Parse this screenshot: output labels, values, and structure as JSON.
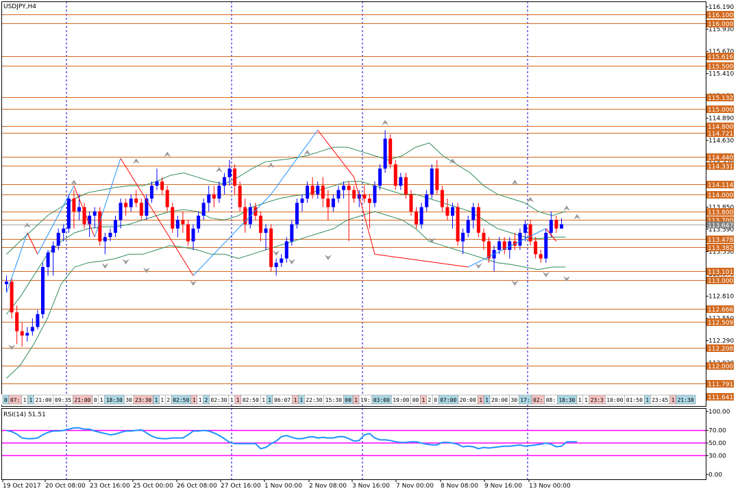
{
  "chart_data": [
    {
      "type": "candlestick",
      "title": "USDJPY,H4",
      "ylim": [
        111.55,
        116.19
      ],
      "y_ticks": [
        "116.190",
        "115.930",
        "115.670",
        "115.410",
        "115.150",
        "114.890",
        "114.630",
        "114.370",
        "114.110",
        "113.850",
        "113.590",
        "113.330",
        "113.070",
        "112.810",
        "112.550",
        "112.290",
        "112.030",
        "111.770"
      ],
      "current_price": "113.647",
      "x_labels": [
        "19 Oct 2017",
        "20 Oct 08:00",
        "23 Oct 16:00",
        "25 Oct 00:00",
        "26 Oct 08:00",
        "27 Oct 16:00",
        "1 Nov 00:00",
        "2 Nov 08:00",
        "3 Nov 16:00",
        "7 Nov 00:00",
        "8 Nov 08:00",
        "9 Nov 16:00",
        "13 Nov 00:00"
      ],
      "levels": [
        "116.100",
        "116.000",
        "115.616",
        "115.500",
        "115.132",
        "115.000",
        "114.800",
        "114.721",
        "114.440",
        "114.331",
        "114.114",
        "114.000",
        "113.800",
        "113.700",
        "113.478",
        "113.382",
        "113.101",
        "113.000",
        "112.666",
        "112.509",
        "112.208",
        "112.000",
        "111.791",
        "111.641"
      ],
      "bull_color": "#0000ff",
      "bear_color": "#ff0000",
      "level_color": "#d2691e",
      "band_color": "#2e8b57",
      "zigzag_up_color": "#1e90ff",
      "zigzag_down_color": "#ff0000",
      "candles": [
        [
          112.95,
          113.05,
          112.85,
          112.98
        ],
        [
          112.98,
          113.02,
          112.55,
          112.62
        ],
        [
          112.62,
          112.7,
          112.25,
          112.4
        ],
        [
          112.4,
          112.5,
          112.22,
          112.35
        ],
        [
          112.35,
          112.45,
          112.28,
          112.38
        ],
        [
          112.4,
          112.55,
          112.35,
          112.45
        ],
        [
          112.45,
          112.65,
          112.42,
          112.6
        ],
        [
          112.6,
          113.2,
          112.55,
          113.15
        ],
        [
          113.15,
          113.35,
          113.05,
          113.32
        ],
        [
          113.32,
          113.45,
          113.05,
          113.4
        ],
        [
          113.4,
          113.6,
          113.35,
          113.55
        ],
        [
          113.55,
          113.65,
          113.45,
          113.6
        ],
        [
          113.6,
          114.0,
          113.55,
          113.95
        ],
        [
          113.95,
          114.05,
          113.6,
          113.8
        ],
        [
          113.8,
          114.0,
          113.7,
          113.85
        ],
        [
          113.85,
          113.9,
          113.6,
          113.65
        ],
        [
          113.65,
          113.8,
          113.5,
          113.75
        ],
        [
          113.75,
          113.85,
          113.6,
          113.8
        ],
        [
          113.8,
          113.85,
          113.4,
          113.45
        ],
        [
          113.45,
          113.55,
          113.3,
          113.5
        ],
        [
          113.5,
          113.6,
          113.45,
          113.55
        ],
        [
          113.55,
          113.75,
          113.5,
          113.7
        ],
        [
          113.7,
          113.95,
          113.6,
          113.9
        ],
        [
          113.9,
          113.95,
          113.75,
          113.85
        ],
        [
          113.85,
          114.0,
          113.8,
          113.95
        ],
        [
          113.95,
          114.05,
          113.85,
          113.9
        ],
        [
          113.9,
          113.95,
          113.7,
          113.75
        ],
        [
          113.75,
          114.0,
          113.7,
          113.95
        ],
        [
          113.95,
          114.15,
          113.9,
          114.1
        ],
        [
          114.1,
          114.3,
          114.05,
          114.15
        ],
        [
          114.15,
          114.2,
          114.0,
          114.05
        ],
        [
          114.05,
          114.1,
          113.8,
          113.85
        ],
        [
          113.85,
          113.9,
          113.55,
          113.6
        ],
        [
          113.6,
          113.75,
          113.5,
          113.7
        ],
        [
          113.7,
          113.8,
          113.55,
          113.65
        ],
        [
          113.65,
          113.7,
          113.4,
          113.45
        ],
        [
          113.45,
          113.65,
          113.35,
          113.6
        ],
        [
          113.6,
          113.8,
          113.55,
          113.75
        ],
        [
          113.75,
          113.95,
          113.7,
          113.9
        ],
        [
          113.9,
          114.1,
          113.8,
          114.0
        ],
        [
          114.0,
          114.1,
          113.85,
          113.95
        ],
        [
          113.95,
          114.15,
          113.9,
          114.1
        ],
        [
          114.1,
          114.25,
          114.0,
          114.2
        ],
        [
          114.2,
          114.4,
          114.1,
          114.3
        ],
        [
          114.3,
          114.35,
          114.0,
          114.1
        ],
        [
          114.1,
          114.15,
          113.8,
          113.85
        ],
        [
          113.85,
          113.95,
          113.55,
          113.65
        ],
        [
          113.65,
          113.9,
          113.6,
          113.85
        ],
        [
          113.85,
          113.9,
          113.7,
          113.75
        ],
        [
          113.75,
          113.8,
          113.45,
          113.55
        ],
        [
          113.55,
          113.65,
          113.35,
          113.6
        ],
        [
          113.6,
          113.65,
          113.1,
          113.15
        ],
        [
          113.15,
          113.25,
          113.05,
          113.2
        ],
        [
          113.2,
          113.3,
          113.15,
          113.25
        ],
        [
          113.25,
          113.5,
          113.2,
          113.45
        ],
        [
          113.45,
          113.7,
          113.4,
          113.65
        ],
        [
          113.65,
          113.95,
          113.6,
          113.9
        ],
        [
          113.9,
          114.0,
          113.8,
          113.95
        ],
        [
          113.95,
          114.15,
          113.9,
          114.1
        ],
        [
          114.1,
          114.2,
          113.95,
          114.0
        ],
        [
          114.0,
          114.15,
          113.95,
          114.1
        ],
        [
          114.1,
          114.2,
          113.85,
          113.95
        ],
        [
          113.95,
          114.05,
          113.7,
          113.85
        ],
        [
          113.85,
          114.0,
          113.8,
          113.95
        ],
        [
          113.95,
          114.1,
          113.9,
          114.05
        ],
        [
          114.05,
          114.15,
          113.95,
          114.1
        ],
        [
          114.1,
          114.15,
          113.45,
          114.05
        ],
        [
          114.05,
          114.1,
          113.9,
          113.95
        ],
        [
          113.95,
          114.05,
          113.85,
          114.0
        ],
        [
          114.0,
          114.1,
          113.9,
          113.95
        ],
        [
          113.95,
          114.0,
          113.6,
          113.9
        ],
        [
          113.9,
          114.15,
          113.85,
          114.1
        ],
        [
          114.1,
          114.35,
          114.05,
          114.3
        ],
        [
          114.3,
          114.75,
          114.25,
          114.65
        ],
        [
          114.65,
          114.7,
          114.3,
          114.35
        ],
        [
          114.35,
          114.4,
          114.05,
          114.1
        ],
        [
          114.1,
          114.25,
          114.05,
          114.2
        ],
        [
          114.2,
          114.25,
          113.95,
          114.0
        ],
        [
          114.0,
          114.05,
          113.75,
          113.8
        ],
        [
          113.8,
          113.85,
          113.6,
          113.65
        ],
        [
          113.65,
          113.9,
          113.6,
          113.85
        ],
        [
          113.85,
          114.05,
          113.8,
          114.0
        ],
        [
          114.0,
          114.35,
          113.95,
          114.3
        ],
        [
          114.3,
          114.4,
          114.0,
          114.05
        ],
        [
          114.05,
          114.1,
          113.8,
          113.85
        ],
        [
          113.85,
          113.95,
          113.7,
          113.75
        ],
        [
          113.75,
          113.9,
          113.6,
          113.85
        ],
        [
          113.85,
          113.9,
          113.4,
          113.45
        ],
        [
          113.45,
          113.6,
          113.3,
          113.55
        ],
        [
          113.55,
          113.75,
          113.5,
          113.7
        ],
        [
          113.7,
          113.9,
          113.6,
          113.85
        ],
        [
          113.85,
          113.9,
          113.5,
          113.55
        ],
        [
          113.55,
          113.6,
          113.35,
          113.45
        ],
        [
          113.45,
          113.5,
          113.2,
          113.25
        ],
        [
          113.25,
          113.4,
          113.1,
          113.35
        ],
        [
          113.35,
          113.5,
          113.3,
          113.45
        ],
        [
          113.45,
          113.5,
          113.3,
          113.35
        ],
        [
          113.35,
          113.5,
          113.25,
          113.45
        ],
        [
          113.45,
          113.55,
          113.35,
          113.4
        ],
        [
          113.4,
          113.6,
          113.35,
          113.55
        ],
        [
          113.55,
          113.7,
          113.45,
          113.65
        ],
        [
          113.65,
          113.7,
          113.4,
          113.45
        ],
        [
          113.45,
          113.5,
          113.25,
          113.3
        ],
        [
          113.3,
          113.35,
          113.2,
          113.25
        ],
        [
          113.25,
          113.6,
          113.2,
          113.55
        ],
        [
          113.55,
          113.8,
          113.5,
          113.7
        ],
        [
          113.7,
          113.75,
          113.55,
          113.6
        ],
        [
          113.6,
          113.72,
          113.6,
          113.65
        ]
      ],
      "upper_band": [
        113.3,
        113.45,
        113.6,
        113.75,
        113.85,
        113.95,
        114.02,
        114.05,
        114.08,
        114.1,
        114.1,
        114.15,
        114.22,
        114.25,
        114.2,
        114.15,
        114.12,
        114.2,
        114.3,
        114.38,
        114.4,
        114.42,
        114.45,
        114.5,
        114.55,
        114.55,
        114.5,
        114.45,
        114.4,
        114.45,
        114.55,
        114.6,
        114.45,
        114.35,
        114.25,
        114.1,
        114.0,
        113.95,
        113.9,
        113.8,
        113.75,
        113.8
      ],
      "mid_band": [
        112.6,
        112.8,
        113.05,
        113.3,
        113.45,
        113.55,
        113.6,
        113.62,
        113.62,
        113.65,
        113.7,
        113.75,
        113.8,
        113.82,
        113.8,
        113.72,
        113.7,
        113.75,
        113.85,
        113.9,
        113.95,
        113.98,
        114.0,
        114.05,
        114.1,
        114.15,
        114.15,
        114.1,
        114.05,
        114.0,
        114.0,
        113.95,
        113.9,
        113.85,
        113.8,
        113.7,
        113.6,
        113.55,
        113.5,
        113.48,
        113.5,
        113.5
      ],
      "lower_band": [
        111.85,
        112.0,
        112.25,
        112.55,
        112.95,
        113.15,
        113.2,
        113.22,
        113.25,
        113.3,
        113.3,
        113.35,
        113.4,
        113.38,
        113.35,
        113.3,
        113.3,
        113.25,
        113.3,
        113.35,
        113.4,
        113.45,
        113.5,
        113.55,
        113.6,
        113.7,
        113.75,
        113.8,
        113.75,
        113.7,
        113.6,
        113.45,
        113.4,
        113.35,
        113.3,
        113.25,
        113.2,
        113.18,
        113.15,
        113.12,
        113.15,
        113.15
      ],
      "zigzag": [
        [
          0,
          112.85
        ],
        [
          4,
          113.55
        ],
        [
          6,
          113.3
        ],
        [
          13,
          114.1
        ],
        [
          17,
          113.5
        ],
        [
          22,
          114.42
        ],
        [
          36,
          113.05
        ],
        [
          51,
          114.0
        ],
        [
          60,
          114.75
        ],
        [
          67,
          114.2
        ],
        [
          71,
          113.3
        ],
        [
          89,
          113.15
        ],
        [
          104,
          113.6
        ],
        [
          106,
          113.45
        ]
      ],
      "fractals_up": [
        [
          4,
          113.55
        ],
        [
          13,
          114.05
        ],
        [
          25,
          114.3
        ],
        [
          31,
          114.38
        ],
        [
          41,
          114.2
        ],
        [
          51,
          114.25
        ],
        [
          58,
          114.4
        ],
        [
          73,
          114.75
        ],
        [
          86,
          114.3
        ],
        [
          98,
          114.05
        ],
        [
          101,
          113.85
        ],
        [
          108,
          113.75
        ],
        [
          110,
          113.65
        ]
      ],
      "fractals_down": [
        [
          1,
          112.3
        ],
        [
          19,
          113.25
        ],
        [
          23,
          113.3
        ],
        [
          27,
          113.2
        ],
        [
          36,
          113.05
        ],
        [
          52,
          113.4
        ],
        [
          55,
          113.3
        ],
        [
          62,
          113.35
        ],
        [
          82,
          113.55
        ],
        [
          91,
          113.25
        ],
        [
          98,
          113.05
        ],
        [
          104,
          113.15
        ],
        [
          108,
          113.1
        ]
      ],
      "info_strip": [
        "0",
        "07:",
        "1",
        "1",
        "21:00",
        "09:35",
        "21:00",
        "0",
        "1",
        "18:30",
        "30",
        "23:30",
        "1",
        "1",
        "2",
        "02:50",
        "1",
        "1",
        "2",
        "02:30",
        "1",
        "1",
        "02:50",
        "1",
        "1",
        "06:07",
        "1",
        "1",
        "22:30",
        "15:30",
        "00",
        "1",
        "19:",
        "03:00",
        "19:00",
        "00",
        "1",
        "2",
        "0",
        "07:00",
        "20:00",
        "1",
        "1",
        "20:00",
        "30",
        "17:",
        "02:",
        "08:",
        "18:30",
        "1",
        "1",
        "23:3",
        "10:00",
        "01:50",
        "1",
        "23:45",
        "1",
        "21:30"
      ]
    },
    {
      "type": "line",
      "title": "RSI(14) 51.51",
      "ylim": [
        0,
        100
      ],
      "y_ticks": [
        "100.00",
        "70.00",
        "50.00",
        "30.00",
        "0.00"
      ],
      "levels": [
        70,
        50,
        30
      ],
      "level_color": "#ff00ff",
      "line_color": "#1e90ff",
      "values": [
        70,
        68,
        64,
        58,
        57,
        57,
        58,
        63,
        67,
        69,
        69,
        70,
        72,
        74,
        74,
        72,
        72,
        69,
        67,
        65,
        63,
        64,
        67,
        69,
        69,
        70,
        71,
        66,
        61,
        58,
        57,
        57,
        58,
        58,
        58,
        63,
        69,
        69,
        70,
        69,
        66,
        62,
        57,
        51,
        49,
        49,
        49,
        49,
        49,
        41,
        43,
        49,
        53,
        60,
        62,
        59,
        57,
        57,
        59,
        60,
        58,
        59,
        58,
        58,
        60,
        60,
        57,
        53,
        54,
        63,
        65,
        58,
        55,
        55,
        54,
        52,
        51,
        51,
        52,
        52,
        50,
        48,
        47,
        47,
        51,
        51,
        50,
        48,
        44,
        45,
        44,
        41,
        43,
        42,
        43,
        44,
        45,
        45,
        46,
        47,
        45,
        46,
        47,
        48,
        50,
        48,
        44,
        45,
        52,
        52,
        52
      ]
    }
  ]
}
